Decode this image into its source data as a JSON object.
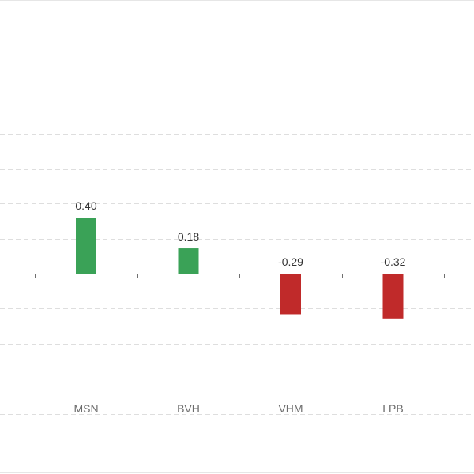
{
  "chart_data": {
    "type": "bar",
    "categories": [
      "MSN",
      "BVH",
      "VHM",
      "LPB"
    ],
    "values": [
      0.4,
      0.18,
      -0.29,
      -0.32
    ],
    "data_labels": [
      "0.40",
      "0.18",
      "-0.29",
      "-0.32"
    ],
    "title": "",
    "xlabel": "",
    "ylabel": "",
    "ylim": [
      -1.0,
      1.0
    ],
    "grid": true,
    "colors": {
      "positive": "#3aa257",
      "negative": "#c02a2a"
    }
  }
}
